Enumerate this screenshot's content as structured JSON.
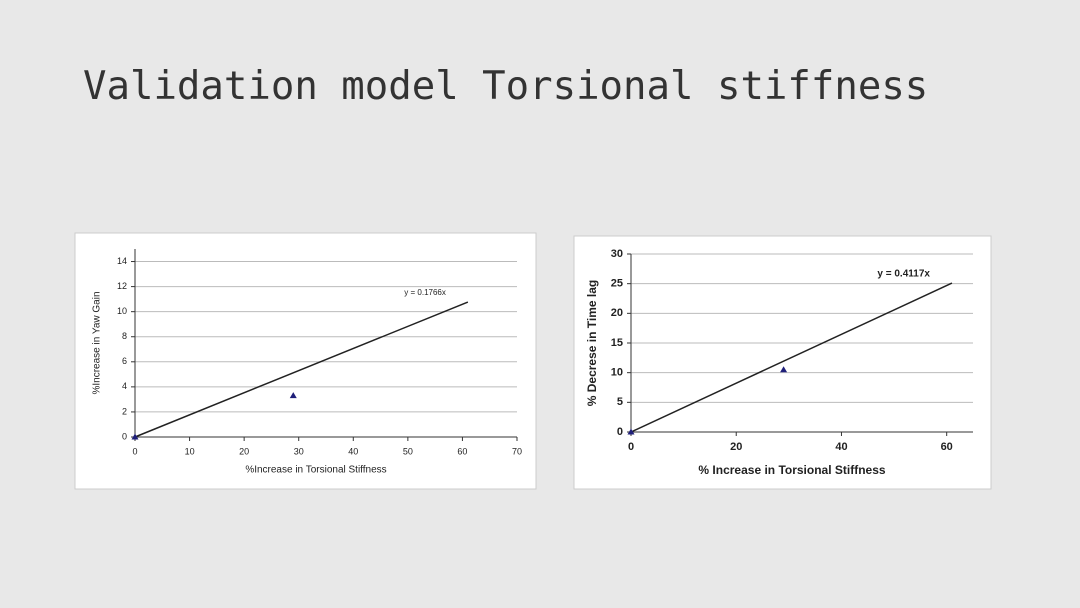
{
  "title": "Validation model Torsional stiffness",
  "chart_data": [
    {
      "type": "scatter",
      "x_label": "%Increase in Torsional Stiffness",
      "y_label": "%Increase in Yaw Gain",
      "x": [
        0,
        29
      ],
      "values": [
        0,
        3.3
      ],
      "color": "#1f1f7a",
      "trendline": {
        "x": [
          0,
          61
        ],
        "values": [
          0,
          10.77
        ],
        "color": "#222222"
      },
      "annotation": "y = 0.1766x",
      "xlim": [
        0,
        70
      ],
      "xticks": [
        0,
        10,
        20,
        30,
        40,
        50,
        60,
        70
      ],
      "ylim": [
        0,
        15
      ],
      "yticks": [
        0,
        2,
        4,
        6,
        8,
        10,
        12,
        14
      ],
      "grid": true
    },
    {
      "type": "scatter",
      "x_label": "% Increase in Torsional Stiffness",
      "y_label": "% Decrese in Time lag",
      "x": [
        0,
        29
      ],
      "values": [
        0,
        10.5
      ],
      "color": "#1f1f7a",
      "trendline": {
        "x": [
          0,
          61
        ],
        "values": [
          0,
          25.1
        ],
        "color": "#222222"
      },
      "annotation": "y = 0.4117x",
      "xlim": [
        0,
        65
      ],
      "xticks": [
        0,
        20,
        40,
        60
      ],
      "ylim": [
        0,
        30
      ],
      "yticks": [
        0,
        5,
        10,
        15,
        20,
        25,
        30
      ],
      "grid": true
    }
  ]
}
